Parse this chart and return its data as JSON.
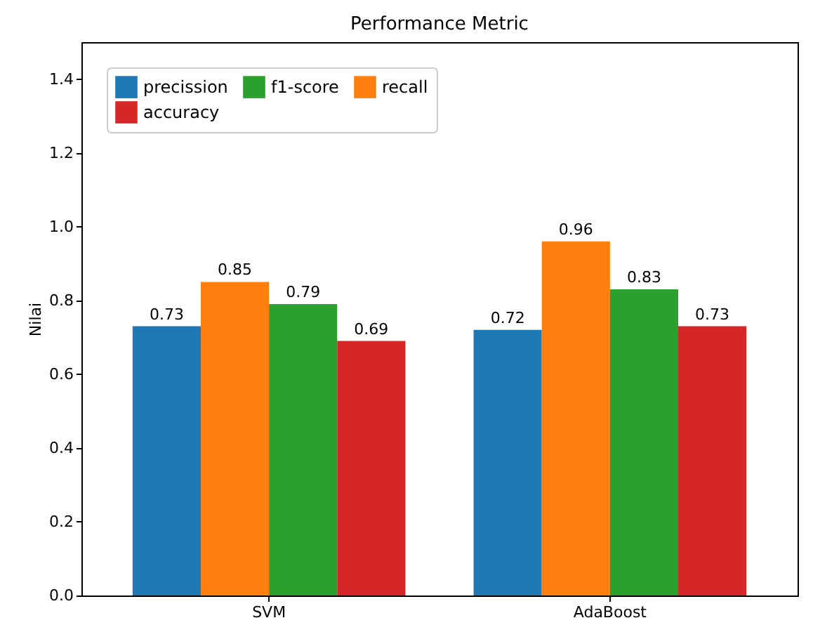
{
  "chart_data": {
    "type": "bar",
    "title": "Performance Metric",
    "ylabel": "Nilai",
    "categories": [
      "SVM",
      "AdaBoost"
    ],
    "series": [
      {
        "name": "precission",
        "color": "#1f77b4",
        "values": [
          0.73,
          0.72
        ]
      },
      {
        "name": "recall",
        "color": "#ff7f0e",
        "values": [
          0.85,
          0.96
        ]
      },
      {
        "name": "f1-score",
        "color": "#2ca02c",
        "values": [
          0.79,
          0.83
        ]
      },
      {
        "name": "accuracy",
        "color": "#d62728",
        "values": [
          0.69,
          0.73
        ]
      }
    ],
    "ylim": [
      0,
      1.5
    ],
    "yticks": [
      {
        "value": 0,
        "label": "0.0"
      },
      {
        "value": 0.2,
        "label": "0.2"
      },
      {
        "value": 0.4,
        "label": "0.4"
      },
      {
        "value": 0.6,
        "label": "0.6"
      },
      {
        "value": 0.8,
        "label": "0.8"
      },
      {
        "value": 1,
        "label": "1.0"
      },
      {
        "value": 1.2,
        "label": "1.2"
      },
      {
        "value": 1.4,
        "label": "1.4"
      }
    ],
    "data_labels": true,
    "legend": "top left",
    "grid": false
  }
}
